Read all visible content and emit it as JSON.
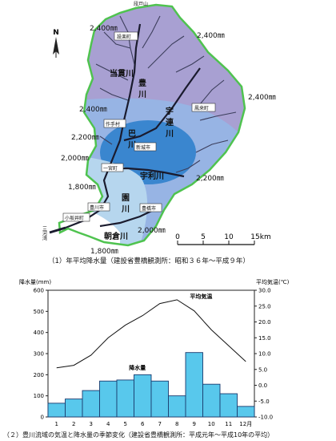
{
  "map": {
    "north_label": "N",
    "isohyets": [
      "2,400㎜",
      "2,400㎜",
      "2,400㎜",
      "2,400㎜",
      "2,200㎜",
      "2,000㎜",
      "2,200㎜",
      "1,800㎜",
      "2,000㎜",
      "1,800㎜"
    ],
    "rivers": [
      "当貫川",
      "豊",
      "川",
      "宇",
      "連",
      "川",
      "巴",
      "川",
      "宇利川",
      "園",
      "川",
      "朝倉川"
    ],
    "places": [
      "段戸山",
      "設楽町",
      "鳳来町",
      "作手村",
      "新城市",
      "一宮町",
      "豊橋市",
      "豊川市",
      "小坂井町",
      "三河湾"
    ],
    "scale": {
      "ticks": [
        "0",
        "5",
        "10",
        "15km"
      ]
    },
    "caption": "（1）年平均降水量（建設省豊橋観測所：昭和３６年～平成９年）"
  },
  "colors": {
    "purple": "#a8a0d2",
    "blue": "#3a86cf",
    "light": "#b6d6ee",
    "border": "#4fc34f",
    "bar": "#58c8ec"
  },
  "chart_data": {
    "type": "bar",
    "title": "",
    "ylabel": "降水量(mm)",
    "y2label": "平均気温(℃)",
    "categories": [
      "1",
      "2",
      "3",
      "4",
      "5",
      "6",
      "7",
      "8",
      "9",
      "10",
      "11",
      "12月"
    ],
    "yticks": [
      "600",
      "500",
      "400",
      "300",
      "200",
      "100",
      "0"
    ],
    "y2ticks": [
      "30.0",
      "25.0",
      "20.0",
      "15.0",
      "10.0",
      "5.0",
      "0.0",
      "-5.0",
      "-10.0"
    ],
    "ylim": [
      0,
      600
    ],
    "y2lim": [
      -10,
      30
    ],
    "series": [
      {
        "name": "降水量",
        "type": "bar",
        "axis": "left",
        "values": [
          65,
          85,
          125,
          170,
          175,
          200,
          170,
          100,
          305,
          155,
          110,
          50
        ]
      },
      {
        "name": "平均気温",
        "type": "line",
        "axis": "right",
        "values": [
          5.5,
          6.3,
          9.5,
          15.0,
          19.0,
          22.0,
          25.8,
          27.0,
          23.5,
          17.5,
          12.5,
          7.5
        ]
      }
    ],
    "caption": "（２）豊川流域の気温と降水量の季節変化（建設省豊橋観測所：平成元年～平成10年の平均）"
  }
}
